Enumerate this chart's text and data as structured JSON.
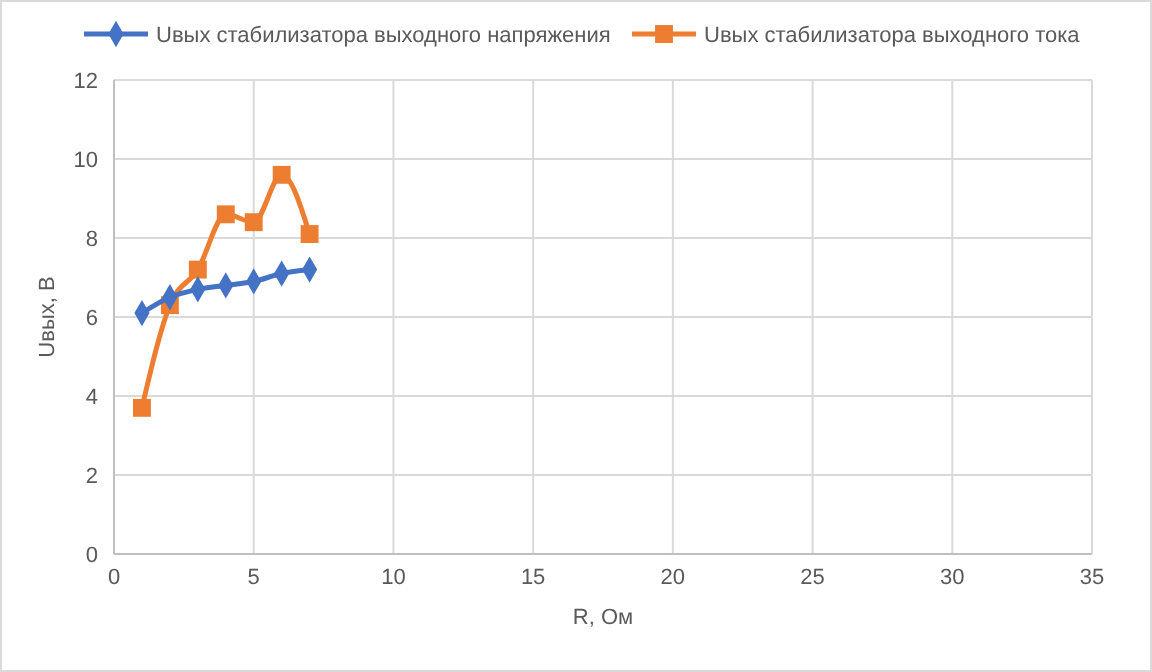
{
  "chart_data": {
    "type": "line",
    "xlabel": "R, Ом",
    "ylabel": "Uвых, В",
    "xlim": [
      0,
      35
    ],
    "xticks": [
      0,
      5,
      10,
      15,
      20,
      25,
      30,
      35
    ],
    "ylim": [
      0,
      12
    ],
    "yticks": [
      0,
      2,
      4,
      6,
      8,
      10,
      12
    ],
    "grid": true,
    "legend": "top",
    "series": [
      {
        "name": "Uвых стабилизатора выходного напряжения",
        "color": "#4472c4",
        "marker": "diamond",
        "x": [
          1,
          2,
          3,
          4,
          5,
          6,
          7
        ],
        "values": [
          6.1,
          6.5,
          6.7,
          6.8,
          6.9,
          7.1,
          7.2
        ]
      },
      {
        "name": "Uвых стабилизатора выходного тока",
        "color": "#ed7d31",
        "marker": "square",
        "x": [
          1,
          2,
          3,
          4,
          5,
          6,
          7
        ],
        "values": [
          3.7,
          6.3,
          7.2,
          8.6,
          8.4,
          9.6,
          8.1
        ]
      }
    ]
  }
}
